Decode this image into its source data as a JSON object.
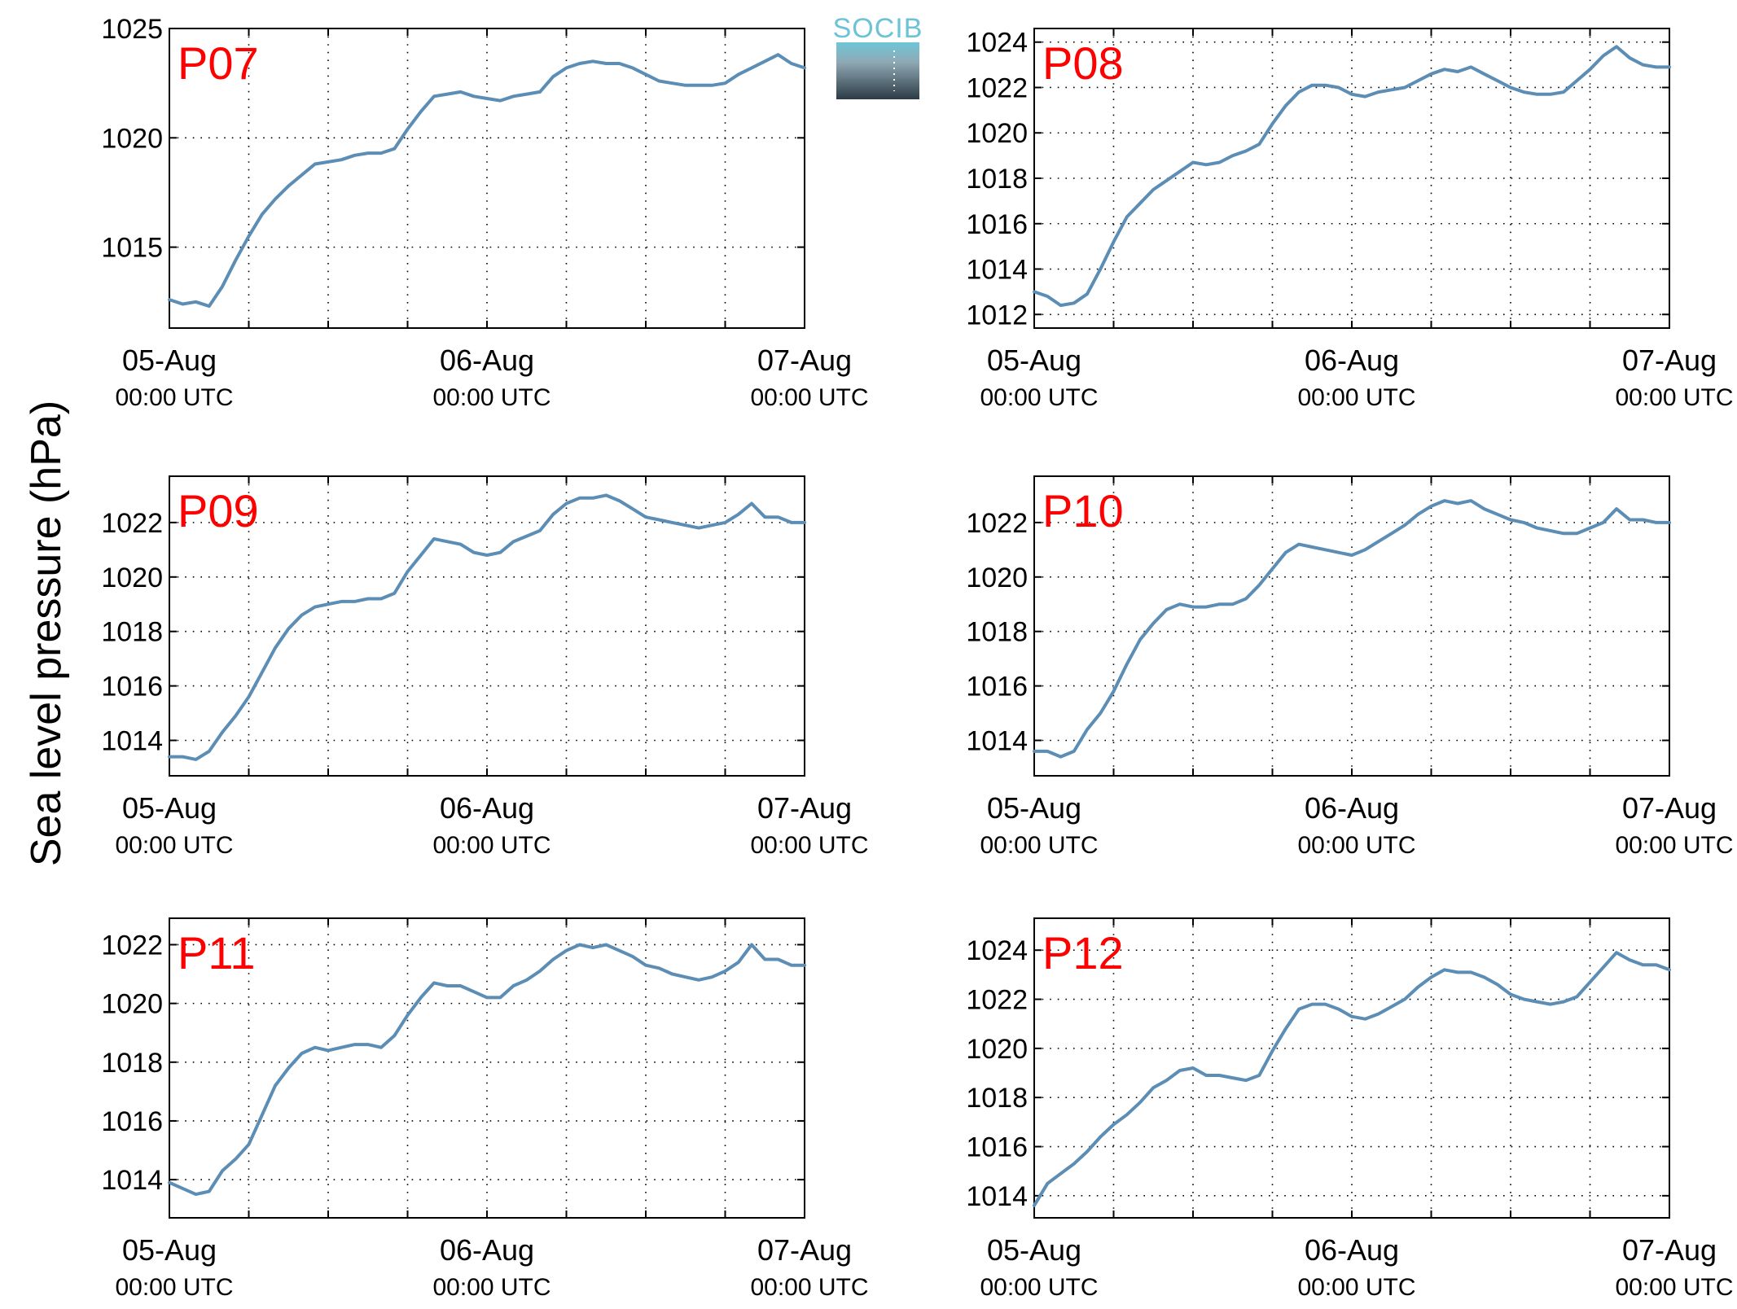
{
  "figure": {
    "ylabel": "Sea level pressure (hPa)",
    "logo_text": "SOCIB",
    "x_tick_labels": [
      {
        "date": "05-Aug",
        "time": "00:00 UTC"
      },
      {
        "date": "06-Aug",
        "time": "00:00 UTC"
      },
      {
        "date": "07-Aug",
        "time": "00:00 UTC"
      }
    ],
    "line_color": "#5b8db5",
    "label_color": "#ff0000"
  },
  "chart_data": [
    {
      "type": "line",
      "panel_label": "P07",
      "x_unit": "hours since 05-Aug 00:00 UTC",
      "xlim": [
        0,
        48
      ],
      "ylim": [
        1011.3,
        1025
      ],
      "yticks": [
        1015,
        1020,
        1025
      ],
      "x": [
        0,
        1,
        2,
        3,
        4,
        5,
        6,
        7,
        8,
        9,
        10,
        11,
        12,
        13,
        14,
        15,
        16,
        17,
        18,
        19,
        20,
        21,
        22,
        23,
        24,
        25,
        26,
        27,
        28,
        29,
        30,
        31,
        32,
        33,
        34,
        35,
        36,
        37,
        38,
        39,
        40,
        41,
        42,
        43,
        44,
        45,
        46,
        47,
        48
      ],
      "y": [
        1012.6,
        1012.4,
        1012.5,
        1012.3,
        1013.2,
        1014.4,
        1015.5,
        1016.5,
        1017.2,
        1017.8,
        1018.3,
        1018.8,
        1018.9,
        1019.0,
        1019.2,
        1019.3,
        1019.3,
        1019.5,
        1020.4,
        1021.2,
        1021.9,
        1022.0,
        1022.1,
        1021.9,
        1021.8,
        1021.7,
        1021.9,
        1022.0,
        1022.1,
        1022.8,
        1023.2,
        1023.4,
        1023.5,
        1023.4,
        1023.4,
        1023.2,
        1022.9,
        1022.6,
        1022.5,
        1022.4,
        1022.4,
        1022.4,
        1022.5,
        1022.9,
        1023.2,
        1023.5,
        1023.8,
        1023.4,
        1023.2
      ]
    },
    {
      "type": "line",
      "panel_label": "P08",
      "x_unit": "hours since 05-Aug 00:00 UTC",
      "xlim": [
        0,
        48
      ],
      "ylim": [
        1011.4,
        1024.6
      ],
      "yticks": [
        1012,
        1014,
        1016,
        1018,
        1020,
        1022,
        1024
      ],
      "x": [
        0,
        1,
        2,
        3,
        4,
        5,
        6,
        7,
        8,
        9,
        10,
        11,
        12,
        13,
        14,
        15,
        16,
        17,
        18,
        19,
        20,
        21,
        22,
        23,
        24,
        25,
        26,
        27,
        28,
        29,
        30,
        31,
        32,
        33,
        34,
        35,
        36,
        37,
        38,
        39,
        40,
        41,
        42,
        43,
        44,
        45,
        46,
        47,
        48
      ],
      "y": [
        1013.0,
        1012.8,
        1012.4,
        1012.5,
        1012.9,
        1014.0,
        1015.2,
        1016.3,
        1016.9,
        1017.5,
        1017.9,
        1018.3,
        1018.7,
        1018.6,
        1018.7,
        1019.0,
        1019.2,
        1019.5,
        1020.4,
        1021.2,
        1021.8,
        1022.1,
        1022.1,
        1022.0,
        1021.7,
        1021.6,
        1021.8,
        1021.9,
        1022.0,
        1022.3,
        1022.6,
        1022.8,
        1022.7,
        1022.9,
        1022.6,
        1022.3,
        1022.0,
        1021.8,
        1021.7,
        1021.7,
        1021.8,
        1022.3,
        1022.8,
        1023.4,
        1023.8,
        1023.3,
        1023.0,
        1022.9,
        1022.9
      ]
    },
    {
      "type": "line",
      "panel_label": "P09",
      "x_unit": "hours since 05-Aug 00:00 UTC",
      "xlim": [
        0,
        48
      ],
      "ylim": [
        1012.7,
        1023.7
      ],
      "yticks": [
        1014,
        1016,
        1018,
        1020,
        1022
      ],
      "x": [
        0,
        1,
        2,
        3,
        4,
        5,
        6,
        7,
        8,
        9,
        10,
        11,
        12,
        13,
        14,
        15,
        16,
        17,
        18,
        19,
        20,
        21,
        22,
        23,
        24,
        25,
        26,
        27,
        28,
        29,
        30,
        31,
        32,
        33,
        34,
        35,
        36,
        37,
        38,
        39,
        40,
        41,
        42,
        43,
        44,
        45,
        46,
        47,
        48
      ],
      "y": [
        1013.4,
        1013.4,
        1013.3,
        1013.6,
        1014.3,
        1014.9,
        1015.6,
        1016.5,
        1017.4,
        1018.1,
        1018.6,
        1018.9,
        1019.0,
        1019.1,
        1019.1,
        1019.2,
        1019.2,
        1019.4,
        1020.2,
        1020.8,
        1021.4,
        1021.3,
        1021.2,
        1020.9,
        1020.8,
        1020.9,
        1021.3,
        1021.5,
        1021.7,
        1022.3,
        1022.7,
        1022.9,
        1022.9,
        1023.0,
        1022.8,
        1022.5,
        1022.2,
        1022.1,
        1022.0,
        1021.9,
        1021.8,
        1021.9,
        1022.0,
        1022.3,
        1022.7,
        1022.2,
        1022.2,
        1022.0,
        1022.0
      ]
    },
    {
      "type": "line",
      "panel_label": "P10",
      "x_unit": "hours since 05-Aug 00:00 UTC",
      "xlim": [
        0,
        48
      ],
      "ylim": [
        1012.7,
        1023.7
      ],
      "yticks": [
        1014,
        1016,
        1018,
        1020,
        1022
      ],
      "x": [
        0,
        1,
        2,
        3,
        4,
        5,
        6,
        7,
        8,
        9,
        10,
        11,
        12,
        13,
        14,
        15,
        16,
        17,
        18,
        19,
        20,
        21,
        22,
        23,
        24,
        25,
        26,
        27,
        28,
        29,
        30,
        31,
        32,
        33,
        34,
        35,
        36,
        37,
        38,
        39,
        40,
        41,
        42,
        43,
        44,
        45,
        46,
        47,
        48
      ],
      "y": [
        1013.6,
        1013.6,
        1013.4,
        1013.6,
        1014.4,
        1015.0,
        1015.8,
        1016.8,
        1017.7,
        1018.3,
        1018.8,
        1019.0,
        1018.9,
        1018.9,
        1019.0,
        1019.0,
        1019.2,
        1019.7,
        1020.3,
        1020.9,
        1021.2,
        1021.1,
        1021.0,
        1020.9,
        1020.8,
        1021.0,
        1021.3,
        1021.6,
        1021.9,
        1022.3,
        1022.6,
        1022.8,
        1022.7,
        1022.8,
        1022.5,
        1022.3,
        1022.1,
        1022.0,
        1021.8,
        1021.7,
        1021.6,
        1021.6,
        1021.8,
        1022.0,
        1022.5,
        1022.1,
        1022.1,
        1022.0,
        1022.0
      ]
    },
    {
      "type": "line",
      "panel_label": "P11",
      "x_unit": "hours since 05-Aug 00:00 UTC",
      "xlim": [
        0,
        48
      ],
      "ylim": [
        1012.7,
        1022.9
      ],
      "yticks": [
        1014,
        1016,
        1018,
        1020,
        1022
      ],
      "x": [
        0,
        1,
        2,
        3,
        4,
        5,
        6,
        7,
        8,
        9,
        10,
        11,
        12,
        13,
        14,
        15,
        16,
        17,
        18,
        19,
        20,
        21,
        22,
        23,
        24,
        25,
        26,
        27,
        28,
        29,
        30,
        31,
        32,
        33,
        34,
        35,
        36,
        37,
        38,
        39,
        40,
        41,
        42,
        43,
        44,
        45,
        46,
        47,
        48
      ],
      "y": [
        1013.9,
        1013.7,
        1013.5,
        1013.6,
        1014.3,
        1014.7,
        1015.2,
        1016.2,
        1017.2,
        1017.8,
        1018.3,
        1018.5,
        1018.4,
        1018.5,
        1018.6,
        1018.6,
        1018.5,
        1018.9,
        1019.6,
        1020.2,
        1020.7,
        1020.6,
        1020.6,
        1020.4,
        1020.2,
        1020.2,
        1020.6,
        1020.8,
        1021.1,
        1021.5,
        1021.8,
        1022.0,
        1021.9,
        1022.0,
        1021.8,
        1021.6,
        1021.3,
        1021.2,
        1021.0,
        1020.9,
        1020.8,
        1020.9,
        1021.1,
        1021.4,
        1022.0,
        1021.5,
        1021.5,
        1021.3,
        1021.3
      ]
    },
    {
      "type": "line",
      "panel_label": "P12",
      "x_unit": "hours since 05-Aug 00:00 UTC",
      "xlim": [
        0,
        48
      ],
      "ylim": [
        1013.1,
        1025.3
      ],
      "yticks": [
        1014,
        1016,
        1018,
        1020,
        1022,
        1024
      ],
      "x": [
        0,
        1,
        2,
        3,
        4,
        5,
        6,
        7,
        8,
        9,
        10,
        11,
        12,
        13,
        14,
        15,
        16,
        17,
        18,
        19,
        20,
        21,
        22,
        23,
        24,
        25,
        26,
        27,
        28,
        29,
        30,
        31,
        32,
        33,
        34,
        35,
        36,
        37,
        38,
        39,
        40,
        41,
        42,
        43,
        44,
        45,
        46,
        47,
        48
      ],
      "y": [
        1013.6,
        1014.5,
        1014.9,
        1015.3,
        1015.8,
        1016.4,
        1016.9,
        1017.3,
        1017.8,
        1018.4,
        1018.7,
        1019.1,
        1019.2,
        1018.9,
        1018.9,
        1018.8,
        1018.7,
        1018.9,
        1019.9,
        1020.8,
        1021.6,
        1021.8,
        1021.8,
        1021.6,
        1021.3,
        1021.2,
        1021.4,
        1021.7,
        1022.0,
        1022.5,
        1022.9,
        1023.2,
        1023.1,
        1023.1,
        1022.9,
        1022.6,
        1022.2,
        1022.0,
        1021.9,
        1021.8,
        1021.9,
        1022.1,
        1022.7,
        1023.3,
        1023.9,
        1023.6,
        1023.4,
        1023.4,
        1023.2
      ]
    }
  ]
}
